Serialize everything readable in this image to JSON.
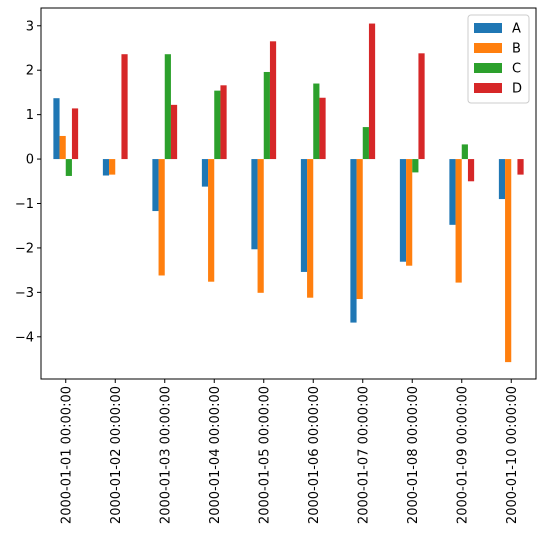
{
  "chart_data": {
    "type": "bar",
    "categories": [
      "2000-01-01 00:00:00",
      "2000-01-02 00:00:00",
      "2000-01-03 00:00:00",
      "2000-01-04 00:00:00",
      "2000-01-05 00:00:00",
      "2000-01-06 00:00:00",
      "2000-01-07 00:00:00",
      "2000-01-08 00:00:00",
      "2000-01-09 00:00:00",
      "2000-01-10 00:00:00"
    ],
    "series": [
      {
        "name": "A",
        "color": "#1f77b4",
        "values": [
          1.37,
          -0.37,
          -1.17,
          -0.62,
          -2.03,
          -2.54,
          -3.68,
          -2.31,
          -1.48,
          -0.9
        ]
      },
      {
        "name": "B",
        "color": "#ff7f0e",
        "values": [
          0.52,
          -0.35,
          -2.62,
          -2.76,
          -3.01,
          -3.12,
          -3.15,
          -2.4,
          -2.78,
          -4.57
        ]
      },
      {
        "name": "C",
        "color": "#2ca02c",
        "values": [
          -0.38,
          0.0,
          2.36,
          1.54,
          1.96,
          1.7,
          0.72,
          -0.3,
          0.33,
          0.0
        ]
      },
      {
        "name": "D",
        "color": "#d62728",
        "values": [
          1.14,
          2.36,
          1.22,
          1.66,
          2.65,
          1.38,
          3.05,
          2.38,
          -0.5,
          -0.35
        ]
      }
    ],
    "yticks": [
      3,
      2,
      1,
      0,
      -1,
      -2,
      -3,
      -4
    ],
    "ylim": [
      -4.95,
      3.4
    ],
    "legend": "top-right",
    "grid": false
  }
}
